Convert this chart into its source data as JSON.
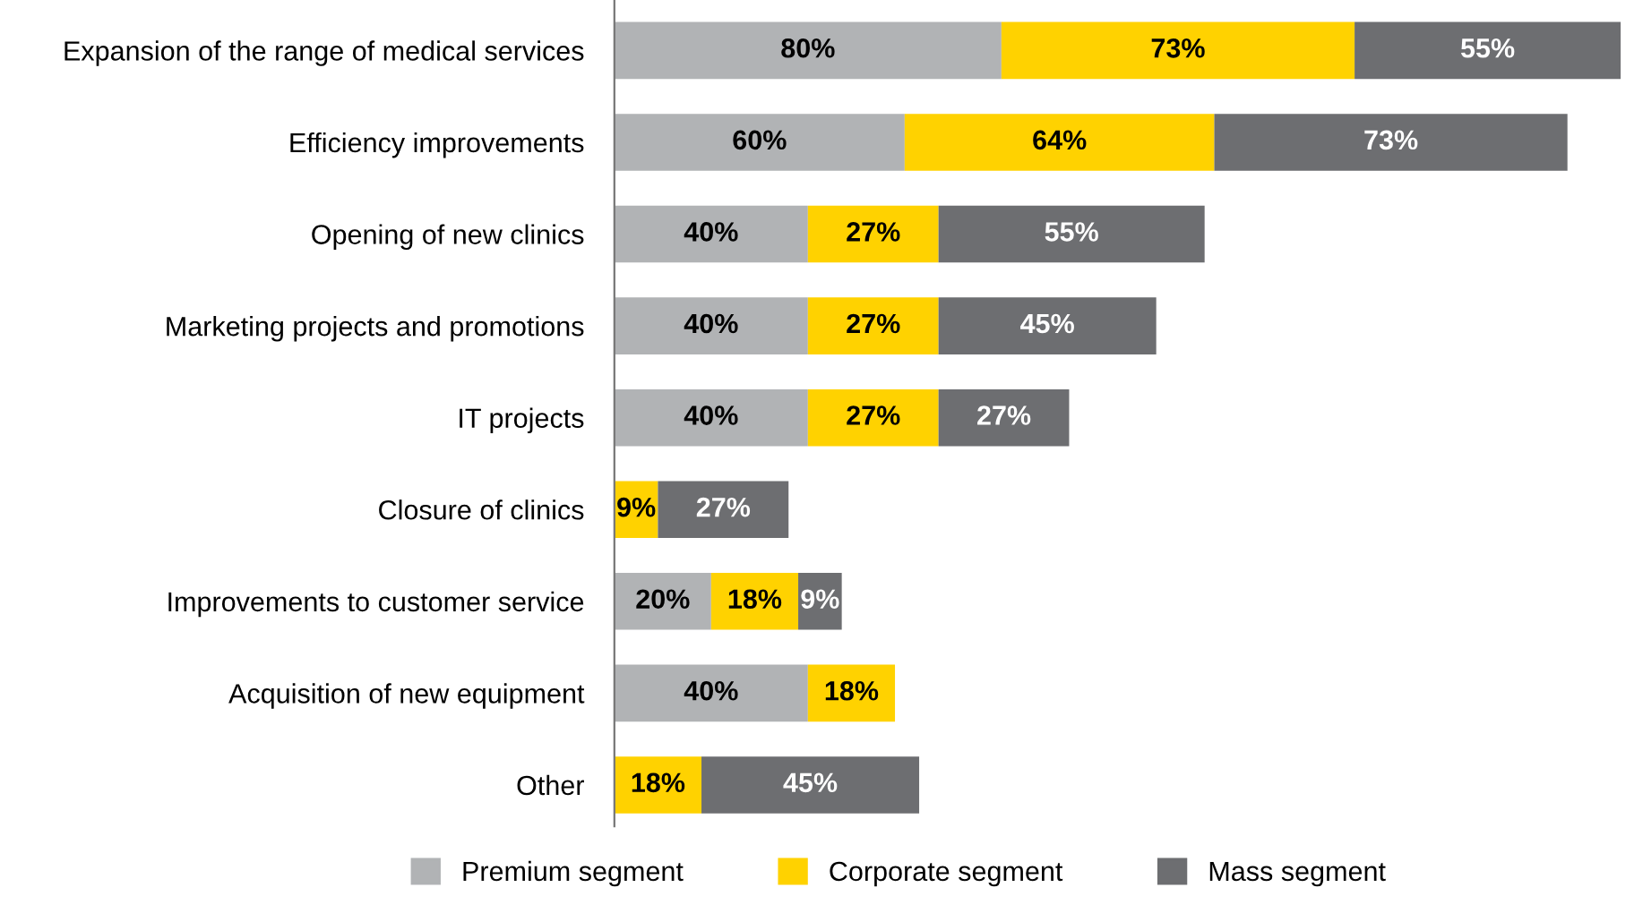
{
  "chart_data": {
    "type": "bar",
    "orientation": "horizontal",
    "stacked": true,
    "legend": "bottom",
    "grid": false,
    "categories": [
      "Expansion of the range of medical services",
      "Efficiency improvements",
      "Opening of new clinics",
      "Marketing projects and promotions",
      "IT projects",
      "Closure of clinics",
      "Improvements to customer service",
      "Acquisition of new equipment",
      "Other"
    ],
    "series": [
      {
        "name": "Premium segment",
        "color": "#b1b3b5",
        "values": [
          80,
          60,
          40,
          40,
          40,
          null,
          20,
          40,
          null
        ],
        "value_labels": [
          "80%",
          "60%",
          "40%",
          "40%",
          "40%",
          null,
          "20%",
          "40%",
          null
        ]
      },
      {
        "name": "Corporate segment",
        "color": "#ffd200",
        "values": [
          73,
          64,
          27,
          27,
          27,
          9,
          18,
          18,
          18
        ],
        "value_labels": [
          "73%",
          "64%",
          "27%",
          "27%",
          "27%",
          "9%",
          "18%",
          "18%",
          "18%"
        ]
      },
      {
        "name": "Mass segment",
        "color": "#6d6e71",
        "values": [
          55,
          73,
          55,
          45,
          27,
          27,
          9,
          null,
          45
        ],
        "value_labels": [
          "55%",
          "73%",
          "55%",
          "45%",
          "27%",
          "27%",
          "9%",
          null,
          "45%"
        ]
      }
    ]
  }
}
